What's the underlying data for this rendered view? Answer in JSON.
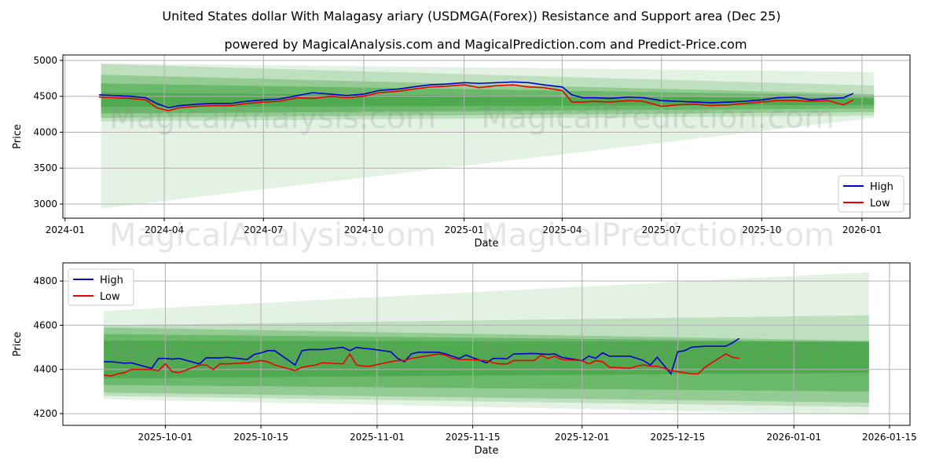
{
  "title": "United States dollar With Malagasy ariary (USDMGA(Forex)) Resistance and Support area (Dec 25)",
  "subtitle": "powered by MagicalAnalysis.com and MagicalPrediction.com and Predict-Price.com",
  "watermarks": [
    "MagicalAnalysis.com",
    "MagicalPrediction.com"
  ],
  "colors": {
    "high": "#0000cc",
    "low": "#ee0000",
    "band": "#2e9a2e",
    "grid": "#b0b0b0"
  },
  "chart_data": [
    {
      "type": "line",
      "xlabel": "Date",
      "ylabel": "Price",
      "xlim": [
        "2023-12-30",
        "2026-02-14"
      ],
      "ylim": [
        2803,
        5076
      ],
      "grid": true,
      "legend": "bottom-right",
      "xticks": [
        "2024-01",
        "2024-04",
        "2024-07",
        "2024-10",
        "2025-01",
        "2025-04",
        "2025-07",
        "2025-10",
        "2026-01"
      ],
      "yticks": [
        3000,
        3500,
        4000,
        4500,
        5000
      ],
      "band_range": [
        "2024-02-03",
        "2026-01-12"
      ],
      "bands": [
        {
          "start": [
            2940,
            4960
          ],
          "end": [
            4200,
            4840
          ],
          "alpha": 0.13
        },
        {
          "start": [
            4150,
            4950
          ],
          "end": [
            4230,
            4650
          ],
          "alpha": 0.2
        },
        {
          "start": [
            4200,
            4800
          ],
          "end": [
            4280,
            4530
          ],
          "alpha": 0.3
        },
        {
          "start": [
            4260,
            4680
          ],
          "end": [
            4330,
            4510
          ],
          "alpha": 0.4
        },
        {
          "start": [
            4350,
            4550
          ],
          "end": [
            4380,
            4470
          ],
          "alpha": 0.45
        }
      ],
      "x": [
        "2024-02-01",
        "2024-02-15",
        "2024-03-01",
        "2024-03-15",
        "2024-03-25",
        "2024-04-05",
        "2024-04-15",
        "2024-05-01",
        "2024-05-15",
        "2024-06-01",
        "2024-06-15",
        "2024-07-01",
        "2024-07-15",
        "2024-08-01",
        "2024-08-15",
        "2024-09-01",
        "2024-09-15",
        "2024-10-01",
        "2024-10-15",
        "2024-11-01",
        "2024-11-15",
        "2024-12-01",
        "2024-12-15",
        "2025-01-01",
        "2025-01-15",
        "2025-02-01",
        "2025-02-15",
        "2025-03-01",
        "2025-03-15",
        "2025-04-01",
        "2025-04-10",
        "2025-04-20",
        "2025-05-01",
        "2025-05-15",
        "2025-06-01",
        "2025-06-15",
        "2025-07-01",
        "2025-07-15",
        "2025-08-01",
        "2025-08-15",
        "2025-09-01",
        "2025-09-15",
        "2025-10-01",
        "2025-10-15",
        "2025-11-01",
        "2025-11-15",
        "2025-12-01",
        "2025-12-15",
        "2025-12-24"
      ],
      "series": [
        {
          "name": "High",
          "values": [
            4520,
            4510,
            4500,
            4480,
            4400,
            4340,
            4370,
            4390,
            4400,
            4400,
            4430,
            4450,
            4460,
            4510,
            4550,
            4530,
            4510,
            4530,
            4580,
            4600,
            4630,
            4660,
            4670,
            4690,
            4680,
            4690,
            4700,
            4690,
            4660,
            4630,
            4520,
            4480,
            4480,
            4470,
            4490,
            4480,
            4440,
            4430,
            4420,
            4410,
            4420,
            4430,
            4450,
            4480,
            4490,
            4450,
            4470,
            4480,
            4540
          ]
        },
        {
          "name": "Low",
          "values": [
            4490,
            4480,
            4470,
            4450,
            4340,
            4300,
            4340,
            4360,
            4370,
            4370,
            4400,
            4420,
            4430,
            4480,
            4470,
            4500,
            4480,
            4500,
            4550,
            4570,
            4600,
            4630,
            4640,
            4660,
            4620,
            4650,
            4660,
            4630,
            4620,
            4580,
            4420,
            4420,
            4430,
            4420,
            4440,
            4430,
            4360,
            4380,
            4390,
            4370,
            4380,
            4400,
            4420,
            4440,
            4440,
            4430,
            4440,
            4380,
            4450
          ]
        }
      ]
    },
    {
      "type": "line",
      "xlabel": "Date",
      "ylabel": "Price",
      "xlim": [
        "2025-09-16",
        "2026-01-18"
      ],
      "ylim": [
        4147,
        4882
      ],
      "grid": true,
      "legend": "top-left",
      "xticks": [
        "2025-10-01",
        "2025-10-15",
        "2025-11-01",
        "2025-11-15",
        "2025-12-01",
        "2025-12-15",
        "2026-01-01",
        "2026-01-15"
      ],
      "yticks": [
        4200,
        4400,
        4600,
        4800
      ],
      "band_range": [
        "2025-09-22",
        "2026-01-12"
      ],
      "bands": [
        {
          "start": [
            4265,
            4665
          ],
          "end": [
            4195,
            4840
          ],
          "alpha": 0.13
        },
        {
          "start": [
            4280,
            4600
          ],
          "end": [
            4230,
            4645
          ],
          "alpha": 0.2
        },
        {
          "start": [
            4295,
            4590
          ],
          "end": [
            4250,
            4530
          ],
          "alpha": 0.3
        },
        {
          "start": [
            4330,
            4560
          ],
          "end": [
            4300,
            4525
          ],
          "alpha": 0.4
        },
        {
          "start": [
            4360,
            4530
          ],
          "end": [
            4385,
            4525
          ],
          "alpha": 0.45
        }
      ],
      "x": [
        "2025-09-22",
        "2025-09-23",
        "2025-09-24",
        "2025-09-25",
        "2025-09-26",
        "2025-09-29",
        "2025-09-30",
        "2025-10-01",
        "2025-10-02",
        "2025-10-03",
        "2025-10-06",
        "2025-10-07",
        "2025-10-08",
        "2025-10-09",
        "2025-10-10",
        "2025-10-13",
        "2025-10-14",
        "2025-10-15",
        "2025-10-16",
        "2025-10-17",
        "2025-10-20",
        "2025-10-21",
        "2025-10-22",
        "2025-10-23",
        "2025-10-24",
        "2025-10-27",
        "2025-10-28",
        "2025-10-29",
        "2025-10-30",
        "2025-10-31",
        "2025-11-03",
        "2025-11-04",
        "2025-11-05",
        "2025-11-06",
        "2025-11-07",
        "2025-11-10",
        "2025-11-11",
        "2025-11-12",
        "2025-11-13",
        "2025-11-14",
        "2025-11-17",
        "2025-11-18",
        "2025-11-19",
        "2025-11-20",
        "2025-11-21",
        "2025-11-24",
        "2025-11-25",
        "2025-11-26",
        "2025-11-27",
        "2025-11-28",
        "2025-12-01",
        "2025-12-02",
        "2025-12-03",
        "2025-12-04",
        "2025-12-05",
        "2025-12-08",
        "2025-12-09",
        "2025-12-10",
        "2025-12-11",
        "2025-12-12",
        "2025-12-14",
        "2025-12-15",
        "2025-12-16",
        "2025-12-17",
        "2025-12-18",
        "2025-12-19",
        "2025-12-22",
        "2025-12-23",
        "2025-12-24"
      ],
      "series": [
        {
          "name": "High",
          "values": [
            4435,
            4435,
            4432,
            4428,
            4430,
            4405,
            4450,
            4450,
            4447,
            4450,
            4425,
            4453,
            4452,
            4452,
            4455,
            4445,
            4468,
            4475,
            4485,
            4485,
            4420,
            4485,
            4490,
            4490,
            4490,
            4500,
            4485,
            4500,
            4495,
            4493,
            4480,
            4450,
            4435,
            4470,
            4478,
            4478,
            4470,
            4460,
            4450,
            4465,
            4430,
            4450,
            4450,
            4448,
            4470,
            4472,
            4470,
            4468,
            4470,
            4455,
            4440,
            4460,
            4450,
            4475,
            4460,
            4460,
            4450,
            4440,
            4420,
            4455,
            4380,
            4480,
            4485,
            4500,
            4503,
            4505,
            4505,
            4520,
            4540
          ]
        },
        {
          "name": "Low",
          "values": [
            4375,
            4370,
            4380,
            4385,
            4400,
            4400,
            4395,
            4425,
            4390,
            4385,
            4420,
            4420,
            4400,
            4425,
            4425,
            4430,
            4435,
            4440,
            4435,
            4420,
            4395,
            4410,
            4415,
            4420,
            4430,
            4425,
            4470,
            4420,
            4415,
            4415,
            4435,
            4440,
            4440,
            4450,
            4455,
            4470,
            4465,
            4450,
            4445,
            4445,
            4440,
            4430,
            4425,
            4425,
            4440,
            4440,
            4465,
            4450,
            4460,
            4445,
            4440,
            4425,
            4440,
            4435,
            4410,
            4405,
            4415,
            4420,
            4415,
            4415,
            4395,
            4390,
            4385,
            4380,
            4380,
            4410,
            4470,
            4455,
            4450
          ]
        }
      ]
    }
  ],
  "legend": {
    "high": "High",
    "low": "Low"
  }
}
